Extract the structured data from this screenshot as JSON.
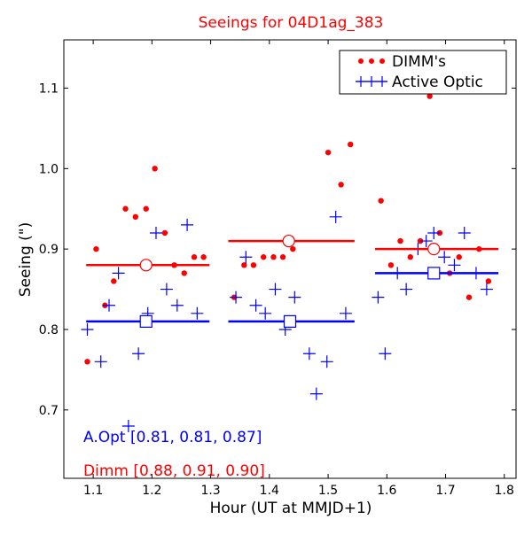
{
  "chart_data": {
    "type": "scatter",
    "title": "Seeings for 04D1ag_383",
    "xlabel": "Hour (UT at MMJD+1)",
    "ylabel": "Seeing (\")",
    "xlim": [
      1.05,
      1.82
    ],
    "ylim": [
      0.615,
      1.16
    ],
    "x_ticks": [
      1.1,
      1.2,
      1.3,
      1.4,
      1.5,
      1.6,
      1.7,
      1.8
    ],
    "x_tick_labels": [
      "1.1",
      "1.2",
      "1.3",
      "1.4",
      "1.5",
      "1.6",
      "1.7",
      "1.8"
    ],
    "y_ticks": [
      0.7,
      0.8,
      0.9,
      1.0,
      1.1
    ],
    "y_tick_labels": [
      "0.7",
      "0.8",
      "0.9",
      "1.0",
      "1.1"
    ],
    "grid": false,
    "legend_position": "top-right",
    "series": [
      {
        "name": "DIMM's",
        "marker": "dot",
        "color": "#ff0000",
        "points": [
          [
            1.09,
            0.76
          ],
          [
            1.105,
            0.9
          ],
          [
            1.12,
            0.83
          ],
          [
            1.135,
            0.86
          ],
          [
            1.155,
            0.95
          ],
          [
            1.172,
            0.94
          ],
          [
            1.19,
            0.95
          ],
          [
            1.205,
            1.0
          ],
          [
            1.222,
            0.92
          ],
          [
            1.238,
            0.88
          ],
          [
            1.255,
            0.87
          ],
          [
            1.272,
            0.89
          ],
          [
            1.288,
            0.89
          ],
          [
            1.34,
            0.84
          ],
          [
            1.357,
            0.88
          ],
          [
            1.373,
            0.88
          ],
          [
            1.39,
            0.89
          ],
          [
            1.407,
            0.89
          ],
          [
            1.423,
            0.89
          ],
          [
            1.44,
            0.9
          ],
          [
            1.5,
            1.02
          ],
          [
            1.522,
            0.98
          ],
          [
            1.538,
            1.03
          ],
          [
            1.59,
            0.96
          ],
          [
            1.607,
            0.88
          ],
          [
            1.623,
            0.91
          ],
          [
            1.64,
            0.89
          ],
          [
            1.657,
            0.91
          ],
          [
            1.673,
            1.09
          ],
          [
            1.69,
            0.92
          ],
          [
            1.707,
            0.87
          ],
          [
            1.723,
            0.89
          ],
          [
            1.74,
            0.84
          ],
          [
            1.757,
            0.9
          ],
          [
            1.773,
            0.86
          ]
        ]
      },
      {
        "name": "Active Optic",
        "marker": "plus",
        "color": "#0000ff",
        "points": [
          [
            1.09,
            0.8
          ],
          [
            1.113,
            0.76
          ],
          [
            1.127,
            0.83
          ],
          [
            1.143,
            0.87
          ],
          [
            1.16,
            0.68
          ],
          [
            1.177,
            0.77
          ],
          [
            1.193,
            0.82
          ],
          [
            1.207,
            0.92
          ],
          [
            1.225,
            0.85
          ],
          [
            1.243,
            0.83
          ],
          [
            1.26,
            0.93
          ],
          [
            1.277,
            0.82
          ],
          [
            1.343,
            0.84
          ],
          [
            1.36,
            0.89
          ],
          [
            1.377,
            0.83
          ],
          [
            1.393,
            0.82
          ],
          [
            1.41,
            0.85
          ],
          [
            1.427,
            0.8
          ],
          [
            1.443,
            0.84
          ],
          [
            1.468,
            0.77
          ],
          [
            1.48,
            0.72
          ],
          [
            1.498,
            0.76
          ],
          [
            1.513,
            0.94
          ],
          [
            1.53,
            0.82
          ],
          [
            1.585,
            0.84
          ],
          [
            1.597,
            0.77
          ],
          [
            1.618,
            0.87
          ],
          [
            1.633,
            0.85
          ],
          [
            1.653,
            0.9
          ],
          [
            1.667,
            0.91
          ],
          [
            1.68,
            0.92
          ],
          [
            1.698,
            0.89
          ],
          [
            1.715,
            0.88
          ],
          [
            1.732,
            0.92
          ],
          [
            1.752,
            0.87
          ],
          [
            1.77,
            0.85
          ]
        ]
      }
    ],
    "segments": {
      "dimm": {
        "color": "#ff0000",
        "marker": "circle",
        "values": [
          {
            "x_start": 1.088,
            "x_end": 1.298,
            "x_center": 1.19,
            "y": 0.88
          },
          {
            "x_start": 1.33,
            "x_end": 1.545,
            "x_center": 1.433,
            "y": 0.91
          },
          {
            "x_start": 1.58,
            "x_end": 1.79,
            "x_center": 1.68,
            "y": 0.9
          }
        ]
      },
      "aopt": {
        "color": "#0000ff",
        "marker": "square",
        "values": [
          {
            "x_start": 1.088,
            "x_end": 1.298,
            "x_center": 1.19,
            "y": 0.81
          },
          {
            "x_start": 1.33,
            "x_end": 1.545,
            "x_center": 1.435,
            "y": 0.81
          },
          {
            "x_start": 1.58,
            "x_end": 1.79,
            "x_center": 1.68,
            "y": 0.87
          }
        ]
      }
    },
    "annotations": [
      {
        "text": "A.Opt [0.81, 0.81, 0.87]",
        "color": "#0000ff"
      },
      {
        "text": "Dimm [0.88, 0.91, 0.90]",
        "color": "#ff0000"
      }
    ]
  }
}
